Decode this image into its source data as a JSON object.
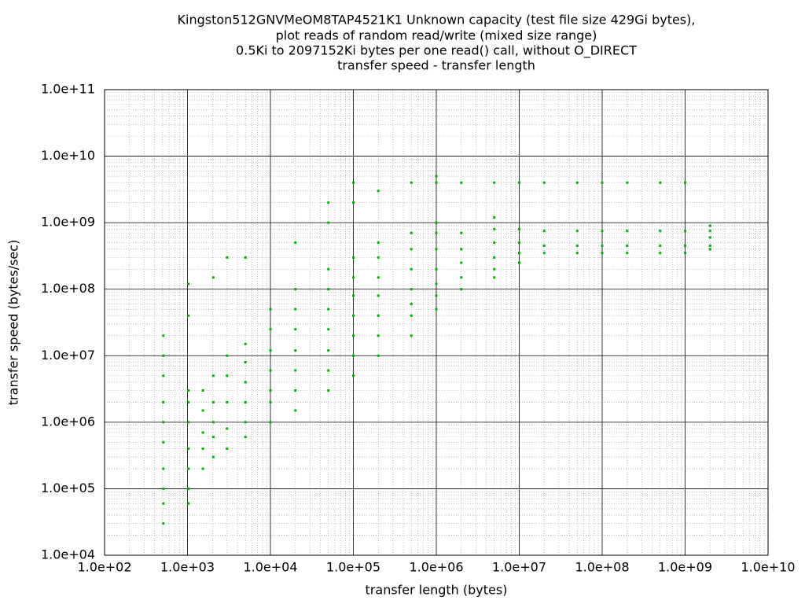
{
  "chart_data": {
    "type": "scatter",
    "title": [
      "Kingston512GNVMeOM8TAP4521K1 Unknown capacity (test file size 429Gi bytes),",
      "plot reads of random read/write (mixed size range)",
      "0.5Ki to 2097152Ki bytes per one read() call, without O_DIRECT",
      "transfer speed - transfer length"
    ],
    "x_label": "transfer length (bytes)",
    "y_label": "transfer speed (bytes/sec)",
    "xlog": true,
    "ylog": true,
    "grid": true,
    "color": "#00b000",
    "xlim": [
      100,
      10000000000
    ],
    "ylim": [
      10000,
      100000000000
    ],
    "xticks": [
      {
        "value": 100,
        "label": "1.0e+02"
      },
      {
        "value": 1000,
        "label": "1.0e+03"
      },
      {
        "value": 10000,
        "label": "1.0e+04"
      },
      {
        "value": 100000,
        "label": "1.0e+05"
      },
      {
        "value": 1000000,
        "label": "1.0e+06"
      },
      {
        "value": 10000000,
        "label": "1.0e+07"
      },
      {
        "value": 100000000,
        "label": "1.0e+08"
      },
      {
        "value": 1000000000,
        "label": "1.0e+09"
      },
      {
        "value": 10000000000,
        "label": "1.0e+10"
      }
    ],
    "yticks": [
      {
        "value": 10000,
        "label": "1.0e+04"
      },
      {
        "value": 100000,
        "label": "1.0e+05"
      },
      {
        "value": 1000000,
        "label": "1.0e+06"
      },
      {
        "value": 10000000,
        "label": "1.0e+07"
      },
      {
        "value": 100000000,
        "label": "1.0e+08"
      },
      {
        "value": 1000000000,
        "label": "1.0e+09"
      },
      {
        "value": 10000000000,
        "label": "1.0e+10"
      },
      {
        "value": 100000000000,
        "label": "1.0e+11"
      }
    ],
    "x": [
      512,
      512,
      512,
      512,
      512,
      512,
      512,
      512,
      512,
      512,
      1024,
      1024,
      1024,
      1024,
      1024,
      1024,
      1024,
      1024,
      1024,
      1536,
      1536,
      1536,
      1536,
      1536,
      2048,
      2048,
      2048,
      2048,
      2048,
      2048,
      3000,
      3000,
      3000,
      3000,
      3000,
      3000,
      5000,
      5000,
      5000,
      5000,
      5000,
      5000,
      5000,
      10000,
      10000,
      10000,
      10000,
      10000,
      10000,
      10000,
      20000,
      20000,
      20000,
      20000,
      20000,
      20000,
      20000,
      20000,
      50000,
      50000,
      50000,
      50000,
      50000,
      50000,
      50000,
      50000,
      50000,
      100000,
      100000,
      100000,
      100000,
      100000,
      100000,
      100000,
      100000,
      100000,
      200000,
      200000,
      200000,
      200000,
      200000,
      200000,
      200000,
      200000,
      500000,
      500000,
      500000,
      500000,
      500000,
      500000,
      500000,
      500000,
      1000000,
      1000000,
      1000000,
      1000000,
      1000000,
      1000000,
      1000000,
      1000000,
      1000000,
      2000000,
      2000000,
      2000000,
      2000000,
      2000000,
      2000000,
      5000000,
      5000000,
      5000000,
      5000000,
      5000000,
      5000000,
      5000000,
      10000000,
      10000000,
      10000000,
      10000000,
      10000000,
      20000000,
      20000000,
      20000000,
      20000000,
      50000000,
      50000000,
      50000000,
      50000000,
      100000000,
      100000000,
      100000000,
      100000000,
      200000000,
      200000000,
      200000000,
      200000000,
      500000000,
      500000000,
      500000000,
      500000000,
      1000000000,
      1000000000,
      1000000000,
      1000000000,
      2000000000,
      2000000000,
      2000000000,
      2000000000,
      2000000000
    ],
    "values": [
      60000,
      100000,
      200000,
      500000,
      1000000,
      2000000,
      5000000,
      10000000,
      20000000,
      30000,
      60000,
      100000,
      200000,
      400000,
      1000000,
      2000000,
      3000000,
      120000000,
      40000000,
      200000,
      400000,
      700000,
      1500000,
      3000000,
      300000,
      600000,
      1000000,
      2000000,
      5000000,
      150000000,
      400000,
      800000,
      2000000,
      5000000,
      10000000,
      300000000,
      600000,
      1000000,
      2000000,
      4000000,
      8000000,
      15000000,
      300000000,
      1000000,
      2000000,
      3000000,
      6000000,
      12000000,
      25000000,
      50000000,
      1500000,
      3000000,
      6000000,
      12000000,
      25000000,
      50000000,
      100000000,
      500000000,
      3000000,
      6000000,
      12000000,
      25000000,
      50000000,
      100000000,
      200000000,
      1000000000,
      2000000000,
      5000000,
      10000000,
      20000000,
      40000000,
      80000000,
      150000000,
      300000000,
      2000000000,
      4000000000,
      10000000,
      20000000,
      40000000,
      80000000,
      150000000,
      300000000,
      500000000,
      3000000000,
      20000000,
      40000000,
      60000000,
      100000000,
      200000000,
      400000000,
      700000000,
      4000000000,
      50000000,
      80000000,
      120000000,
      200000000,
      400000000,
      700000000,
      1000000000,
      4000000000,
      5000000000,
      100000000,
      150000000,
      250000000,
      400000000,
      700000000,
      4000000000,
      150000000,
      200000000,
      300000000,
      500000000,
      800000000,
      1200000000,
      4000000000,
      250000000,
      350000000,
      500000000,
      800000000,
      4000000000,
      350000000,
      450000000,
      750000000,
      4000000000,
      350000000,
      450000000,
      750000000,
      4000000000,
      350000000,
      450000000,
      750000000,
      4000000000,
      350000000,
      450000000,
      750000000,
      4000000000,
      350000000,
      450000000,
      750000000,
      4000000000,
      350000000,
      450000000,
      750000000,
      4000000000,
      400000000,
      450000000,
      600000000,
      750000000,
      900000000
    ]
  }
}
